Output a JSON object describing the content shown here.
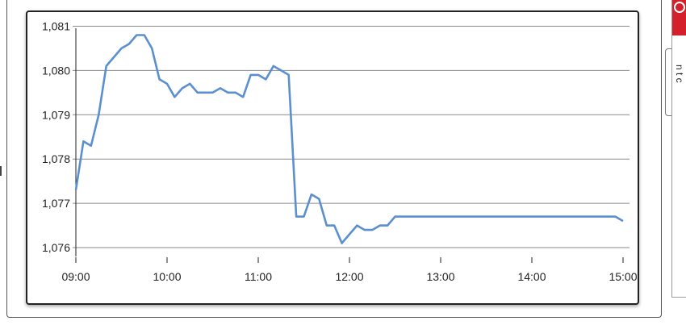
{
  "colors": {
    "line": "#5b8fd0",
    "grid": "#8a8a8a",
    "accent": "#d4202a"
  },
  "side_panel": {
    "icon": "search-icon",
    "text": "n t c"
  },
  "chart_data": {
    "type": "line",
    "title": "",
    "xlabel": "",
    "ylabel": "",
    "x_ticks": [
      "09:00",
      "10:00",
      "11:00",
      "12:00",
      "13:00",
      "14:00",
      "15:00"
    ],
    "y_ticks": [
      "1,076",
      "1,077",
      "1,078",
      "1,079",
      "1,080",
      "1,081"
    ],
    "ylim": [
      1075.8,
      1081.1
    ],
    "xlim_minutes_from_0900": [
      0,
      360
    ],
    "grid": "horizontal",
    "series": [
      {
        "x": [
          "09:00",
          "09:05",
          "09:10",
          "09:15",
          "09:20",
          "09:25",
          "09:30",
          "09:35",
          "09:40",
          "09:45",
          "09:50",
          "09:55",
          "10:00",
          "10:05",
          "10:10",
          "10:15",
          "10:20",
          "10:25",
          "10:30",
          "10:35",
          "10:40",
          "10:45",
          "10:50",
          "10:55",
          "11:00",
          "11:05",
          "11:10",
          "11:15",
          "11:20",
          "11:25",
          "11:30",
          "11:35",
          "11:40",
          "11:45",
          "11:50",
          "11:55",
          "12:00",
          "12:05",
          "12:10",
          "12:15",
          "12:20",
          "12:25",
          "12:30",
          "12:35",
          "12:40",
          "12:45",
          "12:50",
          "12:55",
          "13:00",
          "13:30",
          "14:00",
          "14:30",
          "14:55",
          "15:00"
        ],
        "values": [
          1077.3,
          1078.4,
          1078.3,
          1079.0,
          1080.1,
          1080.3,
          1080.5,
          1080.6,
          1080.8,
          1080.8,
          1080.5,
          1079.8,
          1079.7,
          1079.4,
          1079.6,
          1079.7,
          1079.5,
          1079.5,
          1079.5,
          1079.6,
          1079.5,
          1079.5,
          1079.4,
          1079.9,
          1079.9,
          1079.8,
          1080.1,
          1080.0,
          1079.9,
          1076.7,
          1076.7,
          1077.2,
          1077.1,
          1076.5,
          1076.5,
          1076.1,
          1076.3,
          1076.5,
          1076.4,
          1076.4,
          1076.5,
          1076.5,
          1076.7,
          1076.7,
          1076.7,
          1076.7,
          1076.7,
          1076.7,
          1076.7,
          1076.7,
          1076.7,
          1076.7,
          1076.7,
          1076.6
        ]
      }
    ]
  }
}
